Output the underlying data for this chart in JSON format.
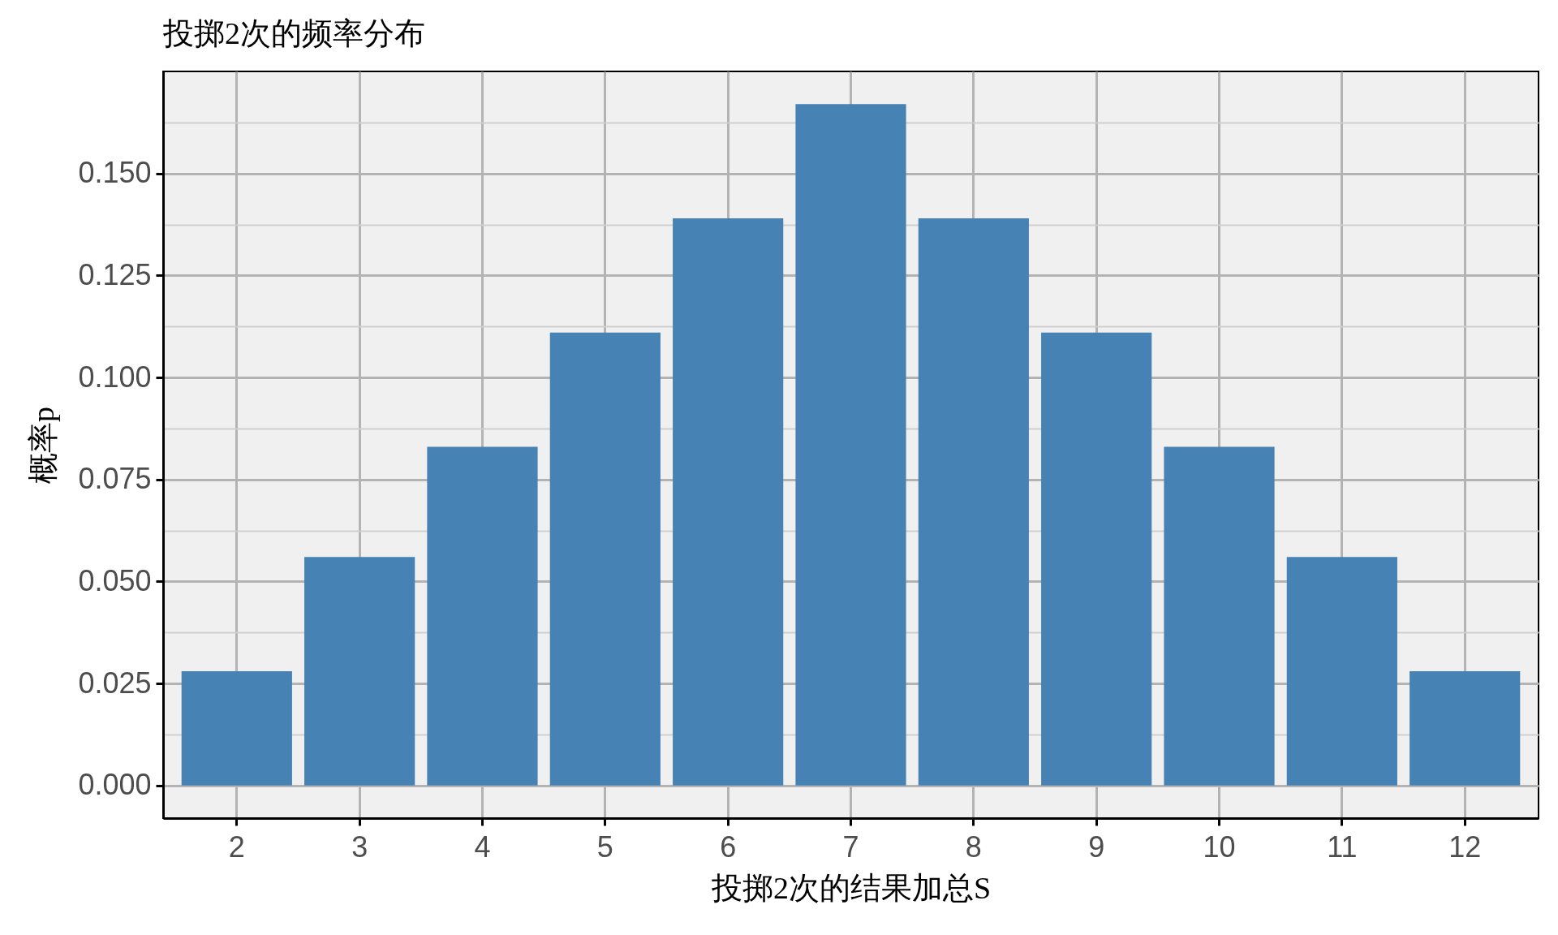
{
  "chart_data": {
    "type": "bar",
    "title": "投掷2次的频率分布",
    "xlabel": "投掷2次的结果加总S",
    "ylabel": "概率p",
    "categories": [
      "2",
      "3",
      "4",
      "5",
      "6",
      "7",
      "8",
      "9",
      "10",
      "11",
      "12"
    ],
    "values": [
      0.028,
      0.056,
      0.083,
      0.111,
      0.139,
      0.167,
      0.139,
      0.111,
      0.083,
      0.056,
      0.028
    ],
    "color": "#4682b4",
    "ylim": [
      -0.008,
      0.175
    ],
    "yticks": [
      {
        "value": 0,
        "label": "0.000"
      },
      {
        "value": 0.0125,
        "label": null
      },
      {
        "value": 0.025,
        "label": "0.025"
      },
      {
        "value": 0.0375,
        "label": null
      },
      {
        "value": 0.05,
        "label": "0.050"
      },
      {
        "value": 0.0625,
        "label": null
      },
      {
        "value": 0.075,
        "label": "0.075"
      },
      {
        "value": 0.0875,
        "label": null
      },
      {
        "value": 0.1,
        "label": "0.100"
      },
      {
        "value": 0.1125,
        "label": null
      },
      {
        "value": 0.125,
        "label": "0.125"
      },
      {
        "value": 0.1375,
        "label": null
      },
      {
        "value": 0.15,
        "label": "0.150"
      },
      {
        "value": 0.1625,
        "label": null
      }
    ],
    "grid": true
  }
}
